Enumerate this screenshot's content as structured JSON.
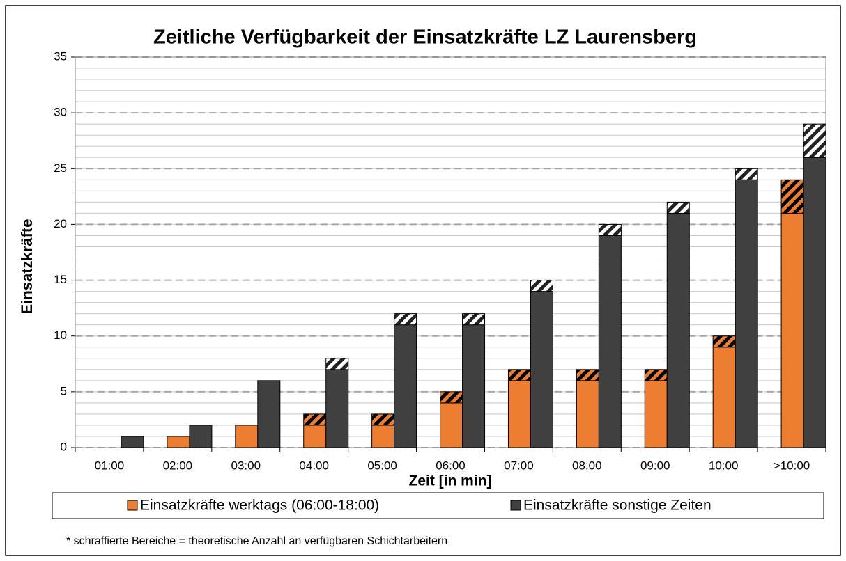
{
  "chart_data": {
    "type": "bar",
    "title": "Zeitliche Verfügbarkeit der Einsatzkräfte LZ Laurensberg",
    "y_label": "Einsatzkräfte",
    "x_label": "Zeit [in min]",
    "categories": [
      "01:00",
      "02:00",
      "03:00",
      "04:00",
      "05:00",
      "06:00",
      "07:00",
      "08:00",
      "09:00",
      "10:00",
      ">10:00"
    ],
    "series": [
      {
        "name": "Einsatzkräfte werktags (06:00-18:00)",
        "color": "#ed7d31",
        "values": [
          0,
          1,
          2,
          2,
          2,
          4,
          6,
          6,
          6,
          9,
          21
        ],
        "hatched": [
          0,
          0,
          0,
          1,
          1,
          1,
          1,
          1,
          1,
          1,
          3
        ]
      },
      {
        "name": "Einsatzkräfte sonstige Zeiten",
        "color": "#404040",
        "values": [
          1,
          2,
          6,
          7,
          11,
          11,
          14,
          19,
          21,
          24,
          26
        ],
        "hatched": [
          0,
          0,
          0,
          1,
          1,
          1,
          1,
          1,
          1,
          1,
          3
        ]
      }
    ],
    "ylim": [
      0,
      35
    ],
    "yticks": [
      0,
      5,
      10,
      15,
      20,
      25,
      30,
      35
    ],
    "minor_yticks": [
      0,
      1,
      2,
      3,
      4,
      5,
      6,
      7,
      8,
      9,
      10,
      11,
      12,
      13,
      14,
      15,
      16,
      17,
      18,
      19,
      20,
      21,
      22,
      23,
      24,
      25,
      26,
      27,
      28,
      29,
      30,
      31,
      32,
      33,
      34,
      35
    ],
    "grid": true,
    "footnote": "* schraffierte Bereiche = theoretische Anzahl an verfügbaren Schichtarbeitern"
  }
}
